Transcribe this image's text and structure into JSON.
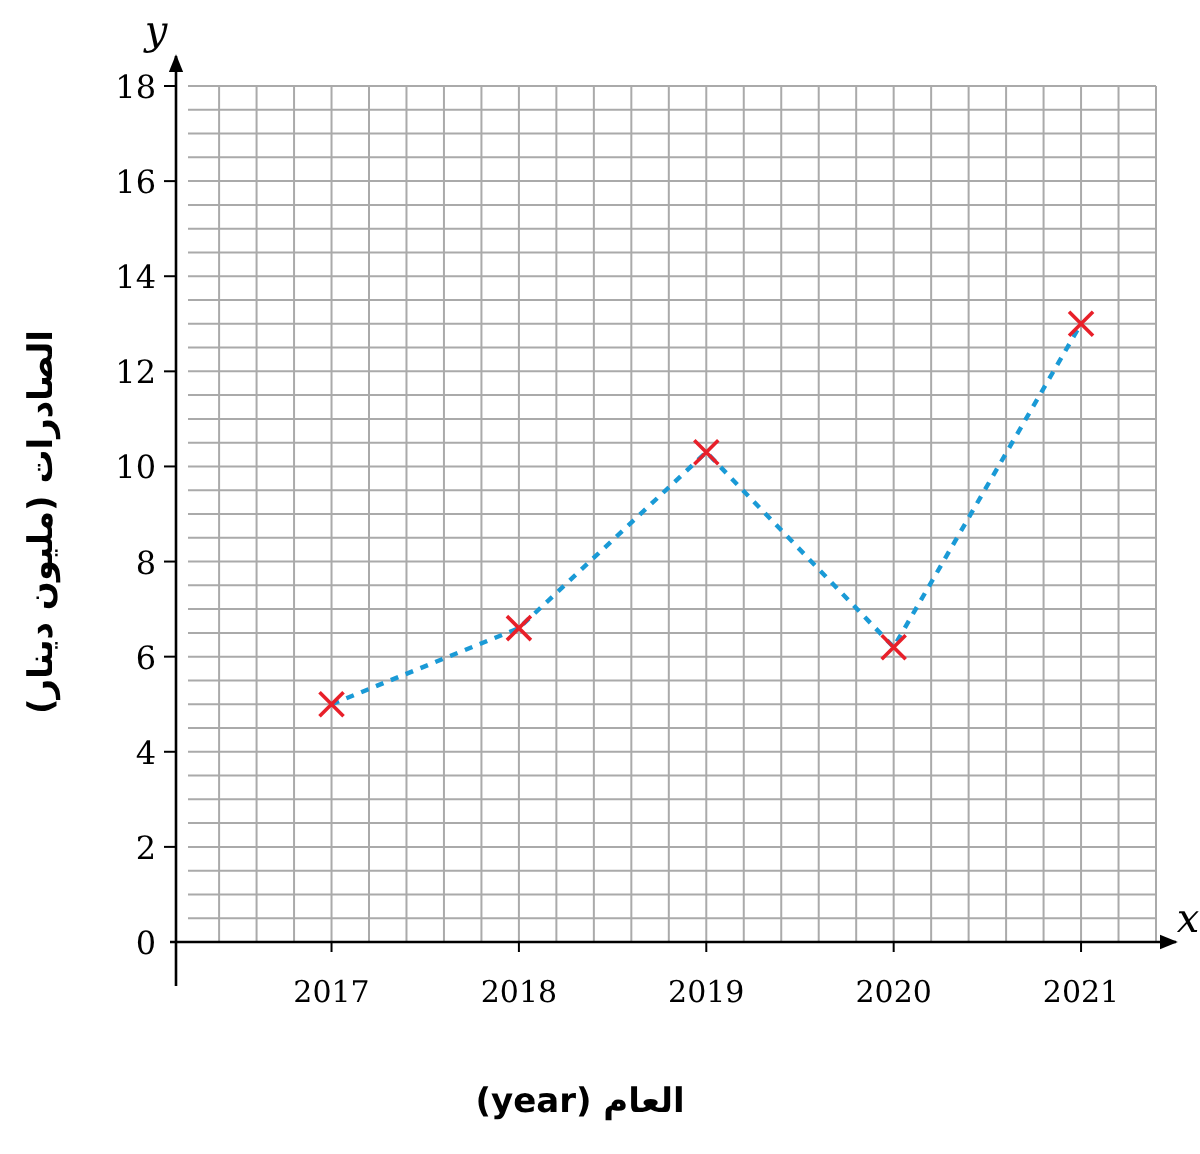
{
  "chart_data": {
    "type": "line",
    "xlabel": "العام (year)",
    "ylabel": "الصادرات (مليون دينار)",
    "annotations": [
      "x",
      "y"
    ],
    "x": [
      2017,
      2018,
      2019,
      2020,
      2021
    ],
    "series": [
      {
        "color": "#1a9ad6",
        "values": [
          5,
          6.6,
          10.3,
          6.2,
          13
        ],
        "marker": "cross",
        "colors": [
          "#e8202a",
          "#e8202a",
          "#e8202a",
          "#e8202a",
          "#e8202a"
        ],
        "line_style": "dashed"
      }
    ],
    "xlim": [
      2016.17,
      2021.4
    ],
    "xticks": [
      2017,
      2018,
      2019,
      2020,
      2021
    ],
    "ylim": [
      0,
      18
    ],
    "yticks": [
      {
        "value": 0,
        "label": "0"
      },
      2,
      4,
      6,
      8,
      10,
      12,
      14,
      16,
      18
    ],
    "grid": true
  }
}
